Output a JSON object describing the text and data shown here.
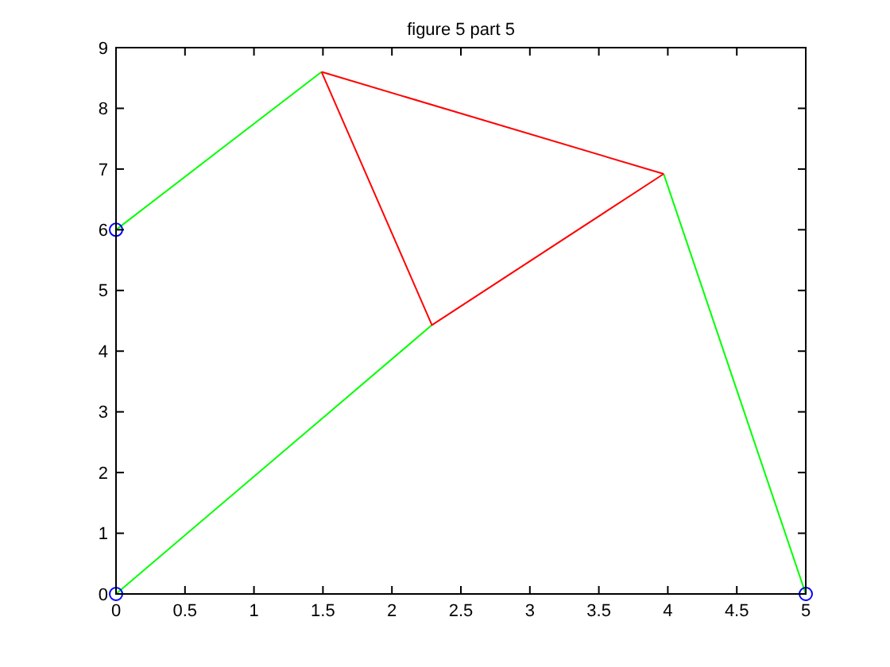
{
  "chart_data": {
    "type": "line",
    "title": "figure 5 part 5",
    "xlim": [
      0,
      5
    ],
    "xticks": [
      0,
      0.5,
      1,
      1.5,
      2,
      2.5,
      3,
      3.5,
      4,
      4.5,
      5
    ],
    "ylim": [
      0,
      9
    ],
    "yticks": [
      0,
      1,
      2,
      3,
      4,
      5,
      6,
      7,
      8,
      9
    ],
    "grid": false,
    "series": [
      {
        "color": "#00ff00",
        "x": [
          0,
          1.49
        ],
        "values": [
          6,
          8.6
        ]
      },
      {
        "color": "#00ff00",
        "x": [
          0,
          2.29
        ],
        "values": [
          0,
          4.43
        ]
      },
      {
        "color": "#00ff00",
        "x": [
          3.97,
          5
        ],
        "values": [
          6.92,
          0
        ]
      },
      {
        "color": "#ff0000",
        "x": [
          1.49,
          2.29,
          3.97
        ],
        "values": [
          8.6,
          4.43,
          6.92
        ]
      },
      {
        "color": "#ff0000",
        "x": [
          1.49,
          3.97
        ],
        "values": [
          8.6,
          6.92
        ]
      },
      {
        "type": "scatter",
        "marker": "circle",
        "color": "#0000ff",
        "x": [
          0,
          0,
          5
        ],
        "values": [
          6,
          0,
          0
        ]
      }
    ]
  }
}
